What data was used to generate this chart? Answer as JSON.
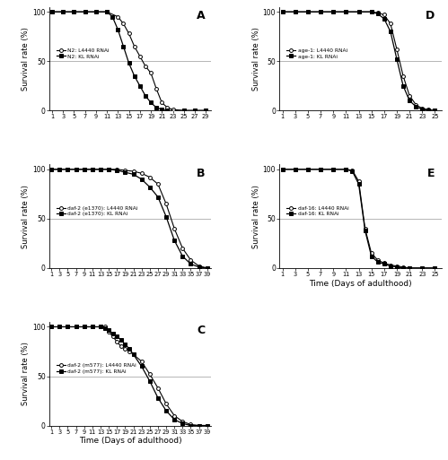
{
  "panel_A": {
    "label": "A",
    "legend": [
      "N2: L4440 RNAi",
      "N2: KL RNAi"
    ],
    "xticks": [
      1,
      3,
      5,
      7,
      9,
      11,
      13,
      15,
      17,
      19,
      21,
      23,
      25,
      27,
      29
    ],
    "xlim": [
      0.5,
      30
    ],
    "ylim": [
      0,
      105
    ],
    "yticks": [
      0,
      50,
      100
    ],
    "legend_loc": "center left",
    "L4440": [
      [
        1,
        100
      ],
      [
        3,
        100
      ],
      [
        5,
        100
      ],
      [
        7,
        100
      ],
      [
        9,
        100
      ],
      [
        11,
        100
      ],
      [
        13,
        95
      ],
      [
        14,
        88
      ],
      [
        15,
        78
      ],
      [
        16,
        65
      ],
      [
        17,
        55
      ],
      [
        18,
        45
      ],
      [
        19,
        38
      ],
      [
        20,
        22
      ],
      [
        21,
        8
      ],
      [
        22,
        3
      ],
      [
        23,
        1
      ],
      [
        25,
        0
      ],
      [
        27,
        0
      ],
      [
        29,
        0
      ]
    ],
    "KL": [
      [
        1,
        100
      ],
      [
        3,
        100
      ],
      [
        5,
        100
      ],
      [
        7,
        100
      ],
      [
        9,
        100
      ],
      [
        11,
        100
      ],
      [
        12,
        95
      ],
      [
        13,
        82
      ],
      [
        14,
        65
      ],
      [
        15,
        48
      ],
      [
        16,
        35
      ],
      [
        17,
        25
      ],
      [
        18,
        15
      ],
      [
        19,
        8
      ],
      [
        20,
        3
      ],
      [
        21,
        1
      ],
      [
        22,
        0
      ],
      [
        25,
        0
      ],
      [
        27,
        0
      ],
      [
        29,
        0
      ]
    ]
  },
  "panel_B": {
    "label": "B",
    "legend": [
      "daf-2 (e1370): L4440 RNAi",
      "daf-2 (e1370): KL RNAi"
    ],
    "xticks": [
      1,
      3,
      5,
      7,
      9,
      11,
      13,
      15,
      17,
      19,
      21,
      23,
      25,
      27,
      29,
      31,
      33,
      35,
      37,
      39
    ],
    "xlim": [
      0.5,
      40
    ],
    "ylim": [
      0,
      105
    ],
    "yticks": [
      0,
      50,
      100
    ],
    "legend_loc": "center left",
    "L4440": [
      [
        1,
        100
      ],
      [
        3,
        100
      ],
      [
        5,
        100
      ],
      [
        7,
        100
      ],
      [
        9,
        100
      ],
      [
        11,
        100
      ],
      [
        13,
        100
      ],
      [
        15,
        100
      ],
      [
        17,
        100
      ],
      [
        19,
        99
      ],
      [
        21,
        98
      ],
      [
        23,
        96
      ],
      [
        25,
        92
      ],
      [
        27,
        85
      ],
      [
        29,
        65
      ],
      [
        31,
        40
      ],
      [
        33,
        20
      ],
      [
        35,
        8
      ],
      [
        37,
        2
      ],
      [
        39,
        0
      ]
    ],
    "KL": [
      [
        1,
        100
      ],
      [
        3,
        100
      ],
      [
        5,
        100
      ],
      [
        7,
        100
      ],
      [
        9,
        100
      ],
      [
        11,
        100
      ],
      [
        13,
        100
      ],
      [
        15,
        100
      ],
      [
        17,
        99
      ],
      [
        19,
        97
      ],
      [
        21,
        95
      ],
      [
        23,
        90
      ],
      [
        25,
        82
      ],
      [
        27,
        72
      ],
      [
        29,
        52
      ],
      [
        31,
        28
      ],
      [
        33,
        12
      ],
      [
        35,
        4
      ],
      [
        37,
        1
      ],
      [
        39,
        0
      ]
    ]
  },
  "panel_C": {
    "label": "C",
    "legend": [
      "daf-2 (m577): L4440 RNAi",
      "daf-2 (m577): KL RNAi"
    ],
    "xticks": [
      1,
      3,
      5,
      7,
      9,
      11,
      13,
      15,
      17,
      19,
      21,
      23,
      25,
      27,
      29,
      31,
      33,
      35,
      37,
      39
    ],
    "xlim": [
      0.5,
      40
    ],
    "ylim": [
      0,
      105
    ],
    "yticks": [
      0,
      50,
      100
    ],
    "legend_loc": "center left",
    "xlabel": "Time (Days of adulthood)",
    "L4440": [
      [
        1,
        100
      ],
      [
        3,
        100
      ],
      [
        5,
        100
      ],
      [
        7,
        100
      ],
      [
        9,
        100
      ],
      [
        11,
        100
      ],
      [
        13,
        100
      ],
      [
        14,
        100
      ],
      [
        15,
        95
      ],
      [
        16,
        90
      ],
      [
        17,
        85
      ],
      [
        18,
        80
      ],
      [
        19,
        78
      ],
      [
        20,
        75
      ],
      [
        21,
        72
      ],
      [
        23,
        65
      ],
      [
        25,
        52
      ],
      [
        27,
        38
      ],
      [
        29,
        22
      ],
      [
        31,
        10
      ],
      [
        33,
        4
      ],
      [
        35,
        1
      ],
      [
        37,
        0
      ],
      [
        39,
        0
      ]
    ],
    "KL": [
      [
        1,
        100
      ],
      [
        3,
        100
      ],
      [
        5,
        100
      ],
      [
        7,
        100
      ],
      [
        9,
        100
      ],
      [
        11,
        100
      ],
      [
        13,
        100
      ],
      [
        14,
        99
      ],
      [
        15,
        97
      ],
      [
        16,
        93
      ],
      [
        17,
        90
      ],
      [
        18,
        87
      ],
      [
        19,
        82
      ],
      [
        20,
        78
      ],
      [
        21,
        72
      ],
      [
        23,
        60
      ],
      [
        25,
        45
      ],
      [
        27,
        28
      ],
      [
        29,
        15
      ],
      [
        31,
        6
      ],
      [
        33,
        2
      ],
      [
        35,
        0
      ],
      [
        37,
        0
      ],
      [
        39,
        0
      ]
    ]
  },
  "panel_D": {
    "label": "D",
    "legend": [
      "age-1: L4440 RNAi",
      "age-1: KL RNAi"
    ],
    "xticks": [
      1,
      3,
      5,
      7,
      9,
      11,
      13,
      15,
      17,
      19,
      21,
      23,
      25
    ],
    "xlim": [
      0.5,
      26
    ],
    "ylim": [
      0,
      105
    ],
    "yticks": [
      0,
      50,
      100
    ],
    "legend_loc": "center left",
    "L4440": [
      [
        1,
        100
      ],
      [
        3,
        100
      ],
      [
        5,
        100
      ],
      [
        7,
        100
      ],
      [
        9,
        100
      ],
      [
        11,
        100
      ],
      [
        13,
        100
      ],
      [
        15,
        100
      ],
      [
        16,
        99
      ],
      [
        17,
        97
      ],
      [
        18,
        88
      ],
      [
        19,
        62
      ],
      [
        20,
        35
      ],
      [
        21,
        15
      ],
      [
        22,
        6
      ],
      [
        23,
        2
      ],
      [
        24,
        1
      ],
      [
        25,
        0
      ]
    ],
    "KL": [
      [
        1,
        100
      ],
      [
        3,
        100
      ],
      [
        5,
        100
      ],
      [
        7,
        100
      ],
      [
        9,
        100
      ],
      [
        11,
        100
      ],
      [
        13,
        100
      ],
      [
        15,
        100
      ],
      [
        16,
        98
      ],
      [
        17,
        93
      ],
      [
        18,
        80
      ],
      [
        19,
        52
      ],
      [
        20,
        25
      ],
      [
        21,
        10
      ],
      [
        22,
        4
      ],
      [
        23,
        1
      ],
      [
        24,
        0
      ],
      [
        25,
        0
      ]
    ]
  },
  "panel_E": {
    "label": "E",
    "legend": [
      "daf-16: L4440 RNAi",
      "daf-16: KL RNAi"
    ],
    "xticks": [
      1,
      3,
      5,
      7,
      9,
      11,
      13,
      15,
      17,
      19,
      21,
      23,
      25
    ],
    "xlim": [
      0.5,
      26
    ],
    "ylim": [
      0,
      105
    ],
    "yticks": [
      0,
      50,
      100
    ],
    "legend_loc": "center left",
    "xlabel": "Time (Days of adulthood)",
    "L4440": [
      [
        1,
        100
      ],
      [
        3,
        100
      ],
      [
        5,
        100
      ],
      [
        7,
        100
      ],
      [
        9,
        100
      ],
      [
        11,
        100
      ],
      [
        12,
        99
      ],
      [
        13,
        88
      ],
      [
        14,
        40
      ],
      [
        15,
        15
      ],
      [
        16,
        8
      ],
      [
        17,
        5
      ],
      [
        18,
        3
      ],
      [
        19,
        2
      ],
      [
        20,
        1
      ],
      [
        21,
        0
      ],
      [
        23,
        0
      ],
      [
        25,
        0
      ]
    ],
    "KL": [
      [
        1,
        100
      ],
      [
        3,
        100
      ],
      [
        5,
        100
      ],
      [
        7,
        100
      ],
      [
        9,
        100
      ],
      [
        11,
        100
      ],
      [
        12,
        98
      ],
      [
        13,
        85
      ],
      [
        14,
        38
      ],
      [
        15,
        12
      ],
      [
        16,
        6
      ],
      [
        17,
        4
      ],
      [
        18,
        2
      ],
      [
        19,
        1
      ],
      [
        20,
        0
      ],
      [
        21,
        0
      ],
      [
        23,
        0
      ],
      [
        25,
        0
      ]
    ]
  },
  "line_color": "#000000",
  "bg_color": "#ffffff",
  "hline_color": "#aaaaaa",
  "hline_y": 50,
  "ylabel": "Survival rate (%)"
}
